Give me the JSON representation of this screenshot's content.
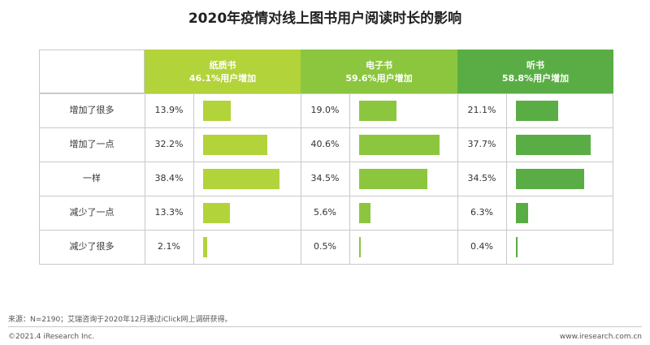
{
  "title": "2020年疫情对线上图书用户阅读时长的影响",
  "chart_data": {
    "type": "bar",
    "categories": [
      "增加了很多",
      "增加了一点",
      "一样",
      "减少了一点",
      "减少了很多"
    ],
    "series": [
      {
        "name": "纸质书",
        "subtitle": "46.1%用户增加",
        "color": "#b3d33b",
        "values": [
          13.9,
          32.2,
          38.4,
          13.3,
          2.1
        ],
        "labels": [
          "13.9%",
          "32.2%",
          "38.4%",
          "13.3%",
          "2.1%"
        ]
      },
      {
        "name": "电子书",
        "subtitle": "59.6%用户增加",
        "color": "#8cc63f",
        "values": [
          19.0,
          40.6,
          34.5,
          5.6,
          0.5
        ],
        "labels": [
          "19.0%",
          "40.6%",
          "34.5%",
          "5.6%",
          "0.5%"
        ]
      },
      {
        "name": "听书",
        "subtitle": "58.8%用户增加",
        "color": "#5aad45",
        "values": [
          21.1,
          37.7,
          34.5,
          6.3,
          0.4
        ],
        "labels": [
          "21.1%",
          "37.7%",
          "34.5%",
          "6.3%",
          "0.4%"
        ]
      }
    ]
  },
  "footer": {
    "source": "来源：N=2190；艾瑞咨询于2020年12月通过iClick网上调研获得。",
    "copyright": "©2021.4 iResearch Inc.",
    "website": "www.iresearch.com.cn"
  }
}
